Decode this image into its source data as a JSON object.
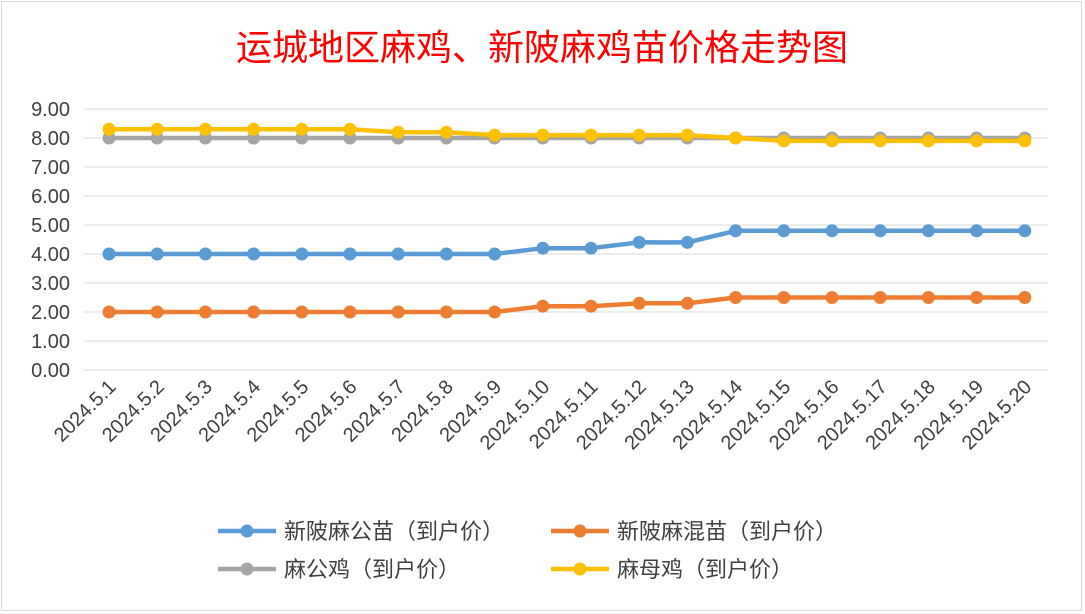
{
  "chart_data": {
    "type": "line",
    "title": "运城地区麻鸡、新陂麻鸡苗价格走势图",
    "xlabel": "",
    "ylabel": "",
    "ylim": [
      0,
      9
    ],
    "ytick_labels": [
      "0.00",
      "1.00",
      "2.00",
      "3.00",
      "4.00",
      "5.00",
      "6.00",
      "7.00",
      "8.00",
      "9.00"
    ],
    "grid": true,
    "legend_position": "bottom",
    "categories": [
      "2024.5.1",
      "2024.5.2",
      "2024.5.3",
      "2024.5.4",
      "2024.5.5",
      "2024.5.6",
      "2024.5.7",
      "2024.5.8",
      "2024.5.9",
      "2024.5.10",
      "2024.5.11",
      "2024.5.12",
      "2024.5.13",
      "2024.5.14",
      "2024.5.15",
      "2024.5.16",
      "2024.5.17",
      "2024.5.18",
      "2024.5.19",
      "2024.5.20"
    ],
    "series": [
      {
        "name": "新陂麻公苗（到户价）",
        "color": "#5b9bd5",
        "values": [
          4.0,
          4.0,
          4.0,
          4.0,
          4.0,
          4.0,
          4.0,
          4.0,
          4.0,
          4.2,
          4.2,
          4.4,
          4.4,
          4.8,
          4.8,
          4.8,
          4.8,
          4.8,
          4.8,
          4.8
        ]
      },
      {
        "name": "新陂麻混苗（到户价）",
        "color": "#ed7d31",
        "values": [
          2.0,
          2.0,
          2.0,
          2.0,
          2.0,
          2.0,
          2.0,
          2.0,
          2.0,
          2.2,
          2.2,
          2.3,
          2.3,
          2.5,
          2.5,
          2.5,
          2.5,
          2.5,
          2.5,
          2.5
        ]
      },
      {
        "name": "麻公鸡（到户价）",
        "color": "#a5a5a5",
        "values": [
          8.0,
          8.0,
          8.0,
          8.0,
          8.0,
          8.0,
          8.0,
          8.0,
          8.0,
          8.0,
          8.0,
          8.0,
          8.0,
          8.0,
          8.0,
          8.0,
          8.0,
          8.0,
          8.0,
          8.0
        ]
      },
      {
        "name": "麻母鸡（到户价）",
        "color": "#ffc000",
        "values": [
          8.3,
          8.3,
          8.3,
          8.3,
          8.3,
          8.3,
          8.2,
          8.2,
          8.1,
          8.1,
          8.1,
          8.1,
          8.1,
          8.0,
          7.9,
          7.9,
          7.9,
          7.9,
          7.9,
          7.9
        ]
      }
    ]
  }
}
